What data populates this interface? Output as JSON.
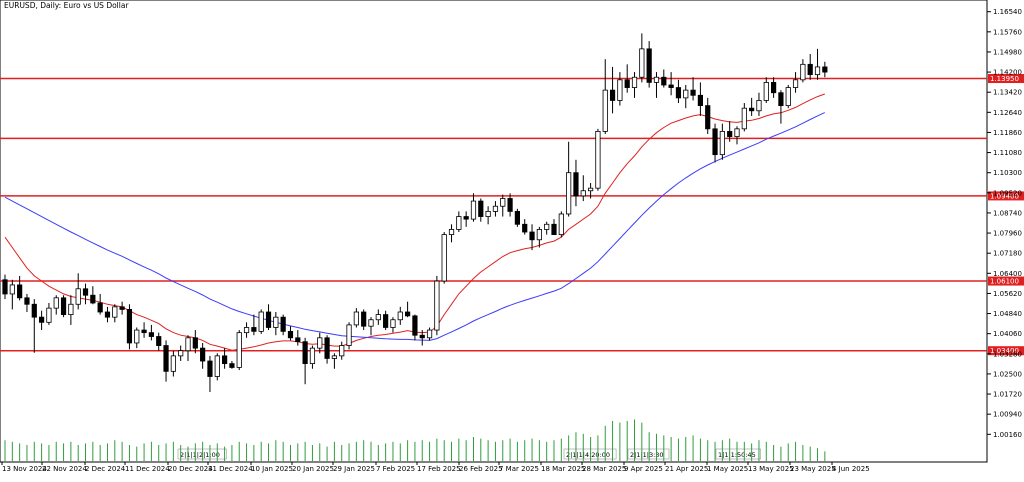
{
  "chart_data": {
    "type": "candlestick",
    "title": "EURUSD, Daily:  Euro vs US Dollar",
    "y_ticks": [
      "1.16540",
      "1.15760",
      "1.14980",
      "1.14200",
      "1.13420",
      "1.12640",
      "1.11860",
      "1.11080",
      "1.10300",
      "1.09520",
      "1.08740",
      "1.07960",
      "1.07180",
      "1.06400",
      "1.05620",
      "1.04840",
      "1.04060",
      "1.03280",
      "1.02500",
      "1.01720",
      "1.00940",
      "1.00160"
    ],
    "ylim": [
      0.999,
      1.168
    ],
    "x_ticks": [
      "13 Nov 2024",
      "22 Nov 2024",
      "2 Dec 2024",
      "11 Dec 2024",
      "20 Dec 2024",
      "31 Dec 2024",
      "10 Jan 2025",
      "20 Jan 2025",
      "29 Jan 2025",
      "7 Feb 2025",
      "17 Feb 2025",
      "26 Feb 2025",
      "7 Mar 2025",
      "18 Mar 2025",
      "28 Mar 2025",
      "9 Apr 2025",
      "21 Apr 2025",
      "1 May 2025",
      "13 May 2025",
      "23 May 2025",
      "4 Jun 2025"
    ],
    "horizontal_lines": [
      {
        "value": 1.1395,
        "label": "1.13950"
      },
      {
        "value": 1.1163,
        "label": ""
      },
      {
        "value": 1.094,
        "label": "1.09400"
      },
      {
        "value": 1.061,
        "label": "1.06100"
      },
      {
        "value": 1.034,
        "label": "1.03400"
      }
    ],
    "period_separators": [
      "2|1|1|2|1:00",
      "2|1|1|4:20:00",
      "2|1|1|3:30",
      "1|1|1:50:45"
    ],
    "candles": [
      [
        1.0615,
        1.0635,
        1.054,
        1.056
      ],
      [
        1.056,
        1.0615,
        1.05,
        1.0595
      ],
      [
        1.0595,
        1.063,
        1.0535,
        1.0545
      ],
      [
        1.0545,
        1.056,
        1.049,
        1.052
      ],
      [
        1.052,
        1.054,
        1.0332,
        1.047
      ],
      [
        1.047,
        1.0495,
        1.042,
        1.045
      ],
      [
        1.045,
        1.0525,
        1.044,
        1.0505
      ],
      [
        1.0505,
        1.0555,
        1.048,
        1.0545
      ],
      [
        1.0545,
        1.0555,
        1.047,
        1.048
      ],
      [
        1.048,
        1.0555,
        1.044,
        1.052
      ],
      [
        1.052,
        1.064,
        1.05,
        1.058
      ],
      [
        1.058,
        1.06,
        1.052,
        1.0555
      ],
      [
        1.0555,
        1.059,
        1.052,
        1.0525
      ],
      [
        1.0525,
        1.056,
        1.048,
        1.049
      ],
      [
        1.049,
        1.051,
        1.045,
        1.047
      ],
      [
        1.047,
        1.052,
        1.045,
        1.051
      ],
      [
        1.051,
        1.053,
        1.048,
        1.05
      ],
      [
        1.05,
        1.052,
        1.0345,
        1.037
      ],
      [
        1.037,
        1.043,
        1.035,
        1.042
      ],
      [
        1.042,
        1.045,
        1.039,
        1.041
      ],
      [
        1.041,
        1.044,
        1.038,
        1.0395
      ],
      [
        1.0395,
        1.041,
        1.034,
        1.036
      ],
      [
        1.036,
        1.038,
        1.022,
        1.026
      ],
      [
        1.026,
        1.034,
        1.024,
        1.032
      ],
      [
        1.032,
        1.036,
        1.03,
        1.034
      ],
      [
        1.034,
        1.04,
        1.03,
        1.039
      ],
      [
        1.039,
        1.042,
        1.033,
        1.035
      ],
      [
        1.035,
        1.037,
        1.027,
        1.03
      ],
      [
        1.03,
        1.032,
        1.018,
        1.024
      ],
      [
        1.024,
        1.033,
        1.0225,
        1.032
      ],
      [
        1.032,
        1.035,
        1.027,
        1.029
      ],
      [
        1.029,
        1.03,
        1.027,
        1.0275
      ],
      [
        1.0275,
        1.042,
        1.0265,
        1.041
      ],
      [
        1.041,
        1.045,
        1.039,
        1.043
      ],
      [
        1.043,
        1.048,
        1.04,
        1.0415
      ],
      [
        1.0415,
        1.05,
        1.0405,
        1.049
      ],
      [
        1.049,
        1.052,
        1.042,
        1.043
      ],
      [
        1.043,
        1.049,
        1.04,
        1.047
      ],
      [
        1.047,
        1.048,
        1.04,
        1.0415
      ],
      [
        1.0415,
        1.0435,
        1.038,
        1.039
      ],
      [
        1.039,
        1.042,
        1.036,
        1.0375
      ],
      [
        1.0375,
        1.039,
        1.021,
        1.029
      ],
      [
        1.029,
        1.036,
        1.027,
        1.035
      ],
      [
        1.035,
        1.041,
        1.033,
        1.039
      ],
      [
        1.039,
        1.04,
        1.029,
        1.031
      ],
      [
        1.031,
        1.033,
        1.027,
        1.032
      ],
      [
        1.032,
        1.0375,
        1.0305,
        1.036
      ],
      [
        1.036,
        1.045,
        1.0345,
        1.044
      ],
      [
        1.044,
        1.0505,
        1.043,
        1.049
      ],
      [
        1.049,
        1.05,
        1.042,
        1.0435
      ],
      [
        1.0435,
        1.047,
        1.04,
        1.046
      ],
      [
        1.046,
        1.05,
        1.044,
        1.048
      ],
      [
        1.048,
        1.0495,
        1.042,
        1.043
      ],
      [
        1.043,
        1.047,
        1.041,
        1.046
      ],
      [
        1.046,
        1.051,
        1.044,
        1.049
      ],
      [
        1.049,
        1.053,
        1.047,
        1.0475
      ],
      [
        1.0475,
        1.048,
        1.038,
        1.04
      ],
      [
        1.04,
        1.042,
        1.036,
        1.039
      ],
      [
        1.039,
        1.043,
        1.038,
        1.042
      ],
      [
        1.042,
        1.063,
        1.04,
        1.061
      ],
      [
        1.061,
        1.08,
        1.06,
        1.079
      ],
      [
        1.079,
        1.083,
        1.076,
        1.081
      ],
      [
        1.081,
        1.088,
        1.08,
        1.086
      ],
      [
        1.086,
        1.088,
        1.082,
        1.085
      ],
      [
        1.085,
        1.095,
        1.084,
        1.092
      ],
      [
        1.092,
        1.093,
        1.084,
        1.086
      ],
      [
        1.086,
        1.09,
        1.083,
        1.088
      ],
      [
        1.088,
        1.092,
        1.086,
        1.09
      ],
      [
        1.09,
        1.0945,
        1.086,
        1.093
      ],
      [
        1.093,
        1.095,
        1.086,
        1.088
      ],
      [
        1.088,
        1.089,
        1.082,
        1.083
      ],
      [
        1.083,
        1.085,
        1.079,
        1.08
      ],
      [
        1.08,
        1.083,
        1.073,
        1.077
      ],
      [
        1.077,
        1.082,
        1.074,
        1.081
      ],
      [
        1.081,
        1.084,
        1.079,
        1.083
      ],
      [
        1.083,
        1.085,
        1.08,
        1.079
      ],
      [
        1.079,
        1.088,
        1.078,
        1.087
      ],
      [
        1.087,
        1.115,
        1.086,
        1.103
      ],
      [
        1.103,
        1.108,
        1.09,
        1.094
      ],
      [
        1.094,
        1.102,
        1.092,
        1.096
      ],
      [
        1.096,
        1.099,
        1.093,
        1.097
      ],
      [
        1.097,
        1.12,
        1.096,
        1.119
      ],
      [
        1.119,
        1.147,
        1.118,
        1.135
      ],
      [
        1.135,
        1.144,
        1.126,
        1.131
      ],
      [
        1.131,
        1.142,
        1.129,
        1.139
      ],
      [
        1.139,
        1.145,
        1.134,
        1.136
      ],
      [
        1.136,
        1.142,
        1.132,
        1.14
      ],
      [
        1.14,
        1.157,
        1.138,
        1.151
      ],
      [
        1.151,
        1.154,
        1.136,
        1.138
      ],
      [
        1.138,
        1.142,
        1.132,
        1.14
      ],
      [
        1.14,
        1.143,
        1.136,
        1.137
      ],
      [
        1.137,
        1.142,
        1.133,
        1.136
      ],
      [
        1.136,
        1.139,
        1.13,
        1.132
      ],
      [
        1.132,
        1.137,
        1.128,
        1.135
      ],
      [
        1.135,
        1.14,
        1.131,
        1.133
      ],
      [
        1.133,
        1.138,
        1.125,
        1.129
      ],
      [
        1.129,
        1.132,
        1.118,
        1.12
      ],
      [
        1.12,
        1.122,
        1.107,
        1.11
      ],
      [
        1.11,
        1.122,
        1.108,
        1.119
      ],
      [
        1.119,
        1.123,
        1.115,
        1.117
      ],
      [
        1.117,
        1.121,
        1.114,
        1.12
      ],
      [
        1.12,
        1.13,
        1.119,
        1.128
      ],
      [
        1.128,
        1.132,
        1.125,
        1.127
      ],
      [
        1.127,
        1.134,
        1.125,
        1.131
      ],
      [
        1.131,
        1.14,
        1.13,
        1.138
      ],
      [
        1.138,
        1.14,
        1.132,
        1.134
      ],
      [
        1.134,
        1.135,
        1.122,
        1.129
      ],
      [
        1.129,
        1.137,
        1.128,
        1.136
      ],
      [
        1.136,
        1.142,
        1.134,
        1.139
      ],
      [
        1.139,
        1.147,
        1.138,
        1.145
      ],
      [
        1.145,
        1.149,
        1.139,
        1.141
      ],
      [
        1.141,
        1.151,
        1.139,
        1.144
      ],
      [
        1.144,
        1.146,
        1.14,
        1.142
      ]
    ],
    "ema_fast": [
      1.078,
      1.074,
      1.07,
      1.066,
      1.063,
      1.061,
      1.059,
      1.0575,
      1.056,
      1.055,
      1.0545,
      1.054,
      1.0535,
      1.0528,
      1.052,
      1.0515,
      1.051,
      1.0495,
      1.048,
      1.047,
      1.0458,
      1.0445,
      1.0425,
      1.041,
      1.04,
      1.0395,
      1.039,
      1.038,
      1.0365,
      1.0358,
      1.035,
      1.0342,
      1.0345,
      1.035,
      1.0355,
      1.0362,
      1.037,
      1.0375,
      1.0378,
      1.0378,
      1.0375,
      1.0368,
      1.0365,
      1.0367,
      1.0362,
      1.0358,
      1.0358,
      1.0368,
      1.038,
      1.0388,
      1.0395,
      1.04,
      1.0403,
      1.0408,
      1.0412,
      1.0418,
      1.0412,
      1.041,
      1.0412,
      1.0435,
      1.048,
      1.052,
      1.056,
      1.059,
      1.062,
      1.0645,
      1.0665,
      1.0685,
      1.0705,
      1.072,
      1.0728,
      1.0735,
      1.074,
      1.0748,
      1.0758,
      1.0765,
      1.078,
      1.081,
      1.083,
      1.085,
      1.087,
      1.09,
      1.095,
      1.099,
      1.103,
      1.1065,
      1.1095,
      1.113,
      1.116,
      1.1185,
      1.1205,
      1.1222,
      1.1232,
      1.1242,
      1.125,
      1.1255,
      1.1248,
      1.1238,
      1.1232,
      1.1227,
      1.1225,
      1.123,
      1.1233,
      1.124,
      1.125,
      1.1258,
      1.1262,
      1.1272,
      1.1283,
      1.1298,
      1.1312,
      1.1325,
      1.1335
    ],
    "ema_slow": [
      1.0935,
      1.092,
      1.0905,
      1.089,
      1.0875,
      1.086,
      1.0845,
      1.083,
      1.0815,
      1.08,
      1.0786,
      1.0772,
      1.0758,
      1.0744,
      1.073,
      1.0718,
      1.0706,
      1.0692,
      1.0678,
      1.0665,
      1.0652,
      1.0638,
      1.0622,
      1.0608,
      1.0595,
      1.0582,
      1.057,
      1.0556,
      1.054,
      1.0528,
      1.0515,
      1.0502,
      1.0492,
      1.0483,
      1.0474,
      1.0466,
      1.0458,
      1.045,
      1.0443,
      1.0436,
      1.043,
      1.0423,
      1.0418,
      1.0413,
      1.0408,
      1.0403,
      1.0398,
      1.0396,
      1.0394,
      1.0392,
      1.039,
      1.0388,
      1.0386,
      1.0385,
      1.0384,
      1.0384,
      1.0382,
      1.0381,
      1.038,
      1.0387,
      1.04,
      1.0413,
      1.0426,
      1.044,
      1.0455,
      1.0468,
      1.048,
      1.0492,
      1.0505,
      1.0516,
      1.0526,
      1.0535,
      1.0544,
      1.0553,
      1.0562,
      1.0571,
      1.0582,
      1.06,
      1.062,
      1.064,
      1.066,
      1.0685,
      1.0715,
      1.0745,
      1.0775,
      1.0805,
      1.0835,
      1.0865,
      1.0893,
      1.092,
      1.0945,
      1.0968,
      1.099,
      1.101,
      1.1028,
      1.1045,
      1.106,
      1.1073,
      1.1086,
      1.1098,
      1.111,
      1.1122,
      1.1134,
      1.1146,
      1.116,
      1.1172,
      1.1183,
      1.1195,
      1.1208,
      1.1222,
      1.1236,
      1.125,
      1.1263
    ],
    "volume": [
      13,
      12,
      11,
      10,
      12,
      11,
      10,
      12,
      11,
      12,
      10,
      11,
      12,
      10,
      11,
      13,
      12,
      10,
      9,
      11,
      12,
      10,
      11,
      12,
      10,
      9,
      11,
      12,
      10,
      11,
      9,
      10,
      12,
      11,
      10,
      12,
      11,
      13,
      12,
      10,
      11,
      12,
      10,
      11,
      9,
      12,
      10,
      11,
      12,
      13,
      12,
      10,
      11,
      12,
      11,
      13,
      12,
      13,
      12,
      14,
      13,
      12,
      14,
      13,
      15,
      14,
      13,
      12,
      13,
      14,
      12,
      13,
      14,
      13,
      12,
      13,
      14,
      16,
      18,
      17,
      15,
      16,
      22,
      25,
      24,
      25,
      26,
      24,
      18,
      17,
      16,
      15,
      14,
      15,
      16,
      14,
      13,
      12,
      13,
      14,
      12,
      12,
      11,
      13,
      12,
      10,
      9,
      11,
      12,
      10,
      9,
      8,
      6
    ]
  }
}
